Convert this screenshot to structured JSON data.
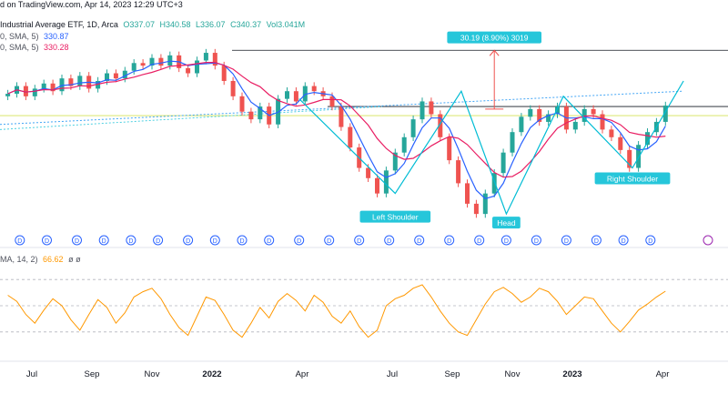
{
  "header": {
    "published": "d on TradingView.com, Apr 14, 2023 12:29 UTC+3",
    "symbol_line": "Industrial Average ETF, 1D, Arca",
    "ohlc": {
      "o": "O337.07",
      "h": "H340.58",
      "l": "L336.07",
      "c": "C340.37",
      "vol": "Vol3.041M"
    },
    "sma1_label": "0, SMA, 5)",
    "sma1_value": "330.87",
    "sma2_label": "0, SMA, 5)",
    "sma2_value": "330.28",
    "osc_label": "MA, 14, 2)",
    "osc_value": "66.62",
    "osc_extra": "ø ø"
  },
  "colors": {
    "up": "#26a69a",
    "down": "#ef5350",
    "sma_fast": "#2962ff",
    "sma_slow": "#e91e63",
    "pattern": "#00bcd4",
    "measure": "#ef5350",
    "osc": "#ff9800",
    "grid": "#e0e3eb"
  },
  "annotations": {
    "measure_label": "30.19 (8.90%) 3019",
    "left_shoulder": "Left Shoulder",
    "head": "Head",
    "right_shoulder": "Right Shoulder"
  },
  "dividend_marker": "D",
  "chart_data": [
    {
      "type": "candlestick",
      "title": "",
      "x_tick_labels": [
        "Jul",
        "Sep",
        "Nov",
        "2022",
        "Apr",
        "Jul",
        "Sep",
        "Nov",
        "2023",
        "Apr"
      ],
      "x_ticks_month_index": [
        0,
        2,
        4,
        6,
        9,
        12,
        14,
        16,
        18,
        21
      ],
      "series": [
        {
          "name": "Price (approx. weekly closes)",
          "x_month_index": [
            -0.8,
            -0.5,
            -0.2,
            0.1,
            0.4,
            0.7,
            1.0,
            1.3,
            1.6,
            1.9,
            2.2,
            2.5,
            2.8,
            3.1,
            3.4,
            3.7,
            4.0,
            4.3,
            4.6,
            4.9,
            5.2,
            5.5,
            5.8,
            6.1,
            6.4,
            6.7,
            7.0,
            7.3,
            7.6,
            7.9,
            8.2,
            8.5,
            8.8,
            9.1,
            9.4,
            9.7,
            10.0,
            10.3,
            10.6,
            10.9,
            11.2,
            11.5,
            11.8,
            12.1,
            12.4,
            12.7,
            13.0,
            13.3,
            13.6,
            13.9,
            14.2,
            14.5,
            14.8,
            15.1,
            15.4,
            15.7,
            16.0,
            16.3,
            16.6,
            16.9,
            17.2,
            17.5,
            17.8,
            18.1,
            18.4,
            18.7,
            19.0,
            19.3,
            19.6,
            19.9,
            20.2,
            20.5,
            20.8,
            21.1
          ],
          "values": [
            345,
            348,
            344,
            347,
            349,
            346,
            351,
            348,
            352,
            347,
            350,
            353,
            351,
            354,
            357,
            356,
            359,
            356,
            360,
            355,
            353,
            358,
            361,
            356,
            350,
            344,
            338,
            335,
            340,
            333,
            343,
            346,
            342,
            348,
            346,
            344,
            340,
            332,
            324,
            316,
            312,
            306,
            315,
            322,
            328,
            335,
            342,
            337,
            328,
            319,
            310,
            302,
            298,
            306,
            314,
            322,
            330,
            336,
            339,
            334,
            337,
            340,
            331,
            334,
            339,
            337,
            331,
            328,
            323,
            316,
            325,
            330,
            334,
            340.37
          ]
        },
        {
          "name": "SMA fast",
          "values_note": "computed moving average of price"
        },
        {
          "name": "SMA slow",
          "values_note": "computed moving average of price"
        }
      ],
      "levels": {
        "resistance_upper": 362,
        "neckline": 340,
        "head_low": 298
      },
      "y_range": [
        292,
        366
      ],
      "grid": false
    },
    {
      "type": "line",
      "title": "",
      "series": [
        {
          "name": "Oscillator",
          "x_month_index": [
            -0.8,
            -0.5,
            -0.2,
            0.1,
            0.4,
            0.7,
            1.0,
            1.3,
            1.6,
            1.9,
            2.2,
            2.5,
            2.8,
            3.1,
            3.4,
            3.7,
            4.0,
            4.3,
            4.6,
            4.9,
            5.2,
            5.5,
            5.8,
            6.1,
            6.4,
            6.7,
            7.0,
            7.3,
            7.6,
            7.9,
            8.2,
            8.5,
            8.8,
            9.1,
            9.4,
            9.7,
            10.0,
            10.3,
            10.6,
            10.9,
            11.2,
            11.5,
            11.8,
            12.1,
            12.4,
            12.7,
            13.0,
            13.3,
            13.6,
            13.9,
            14.2,
            14.5,
            14.8,
            15.1,
            15.4,
            15.7,
            16.0,
            16.3,
            16.6,
            16.9,
            17.2,
            17.5,
            17.8,
            18.1,
            18.4,
            18.7,
            19.0,
            19.3,
            19.6,
            19.9,
            20.2,
            20.5,
            20.8,
            21.1
          ],
          "values": [
            62,
            55,
            40,
            30,
            45,
            58,
            50,
            34,
            22,
            40,
            57,
            48,
            30,
            42,
            60,
            66,
            70,
            58,
            40,
            25,
            16,
            38,
            60,
            56,
            40,
            22,
            14,
            30,
            48,
            36,
            55,
            64,
            56,
            44,
            62,
            54,
            38,
            30,
            44,
            26,
            14,
            22,
            50,
            58,
            62,
            70,
            74,
            60,
            44,
            30,
            20,
            16,
            34,
            52,
            66,
            71,
            64,
            54,
            60,
            70,
            66,
            55,
            40,
            50,
            60,
            58,
            44,
            30,
            20,
            32,
            45,
            52,
            60,
            66.62
          ]
        }
      ],
      "levels": [
        20,
        50,
        80
      ],
      "y_range": [
        0,
        100
      ],
      "grid": false
    }
  ]
}
